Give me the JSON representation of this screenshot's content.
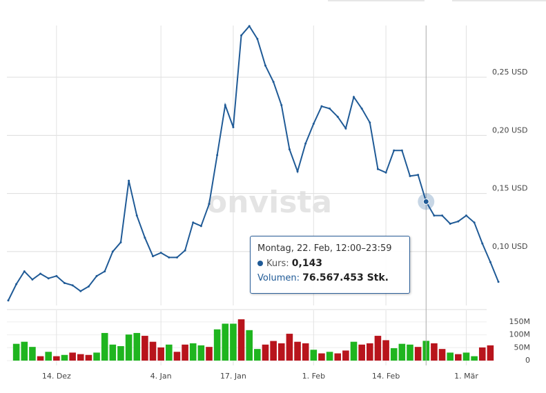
{
  "chart_data": {
    "type": "line",
    "watermark": "onvista",
    "x": [
      null,
      null,
      null,
      null,
      null,
      null,
      "14. Dez",
      null,
      null,
      null,
      null,
      null,
      null,
      null,
      null,
      null,
      null,
      null,
      null,
      "4. Jan",
      null,
      null,
      null,
      null,
      null,
      null,
      null,
      null,
      "17. Jan",
      null,
      null,
      null,
      null,
      null,
      null,
      null,
      null,
      null,
      "1. Feb",
      null,
      null,
      null,
      null,
      null,
      null,
      null,
      null,
      "14. Feb",
      null,
      null,
      null,
      null,
      null,
      null,
      null,
      null,
      null,
      "1. Mär",
      null,
      null,
      null,
      null
    ],
    "series": [
      {
        "color": "#1f5a96",
        "values": [
          0.058,
          0.072,
          0.083,
          0.076,
          0.081,
          0.077,
          0.079,
          0.073,
          0.071,
          0.066,
          0.07,
          0.079,
          0.083,
          0.1,
          0.108,
          0.161,
          0.131,
          0.112,
          0.096,
          0.099,
          0.095,
          0.095,
          0.101,
          0.125,
          0.122,
          0.141,
          0.183,
          0.226,
          0.207,
          0.286,
          0.294,
          0.283,
          0.26,
          0.246,
          0.226,
          0.188,
          0.169,
          0.193,
          0.21,
          0.225,
          0.223,
          0.216,
          0.206,
          0.233,
          0.223,
          0.211,
          0.171,
          0.168,
          0.187,
          0.187,
          0.165,
          0.166,
          0.143,
          0.131,
          0.131,
          0.124,
          0.126,
          0.131,
          0.125,
          0.107,
          0.091,
          0.074
        ]
      }
    ],
    "ylim": [
      0.0537,
      0.2945
    ],
    "yticks": [
      {
        "value": 0.1,
        "label": "0,10 USD"
      },
      {
        "value": 0.15,
        "label": "0,15 USD"
      },
      {
        "value": 0.2,
        "label": "0,20 USD"
      },
      {
        "value": 0.25,
        "label": "0,25 USD"
      }
    ],
    "grid": true,
    "volume": {
      "values": [
        null,
        65000000,
        73000000,
        53000000,
        17000000,
        34000000,
        17000000,
        22000000,
        31000000,
        25000000,
        22000000,
        31000000,
        107000000,
        62000000,
        56000000,
        101000000,
        107000000,
        96000000,
        73000000,
        51000000,
        62000000,
        34000000,
        62000000,
        67000000,
        59000000,
        53000000,
        121000000,
        143000000,
        143000000,
        160000000,
        118000000,
        45000000,
        62000000,
        76000000,
        67000000,
        104000000,
        73000000,
        67000000,
        42000000,
        28000000,
        34000000,
        28000000,
        39000000,
        73000000,
        62000000,
        67000000,
        96000000,
        79000000,
        48000000,
        65000000,
        62000000,
        53000000,
        76567453,
        67000000,
        45000000,
        31000000,
        25000000,
        31000000,
        17000000,
        51000000,
        59000000,
        null
      ],
      "colors": [
        null,
        "#1fb51f",
        "#1fb51f",
        "#1fb51f",
        "#b8141c",
        "#1fb51f",
        "#b8141c",
        "#1fb51f",
        "#b8141c",
        "#b8141c",
        "#b8141c",
        "#1fb51f",
        "#1fb51f",
        "#1fb51f",
        "#1fb51f",
        "#1fb51f",
        "#1fb51f",
        "#b8141c",
        "#b8141c",
        "#b8141c",
        "#1fb51f",
        "#b8141c",
        "#b8141c",
        "#1fb51f",
        "#1fb51f",
        "#b8141c",
        "#1fb51f",
        "#1fb51f",
        "#1fb51f",
        "#b8141c",
        "#1fb51f",
        "#1fb51f",
        "#b8141c",
        "#b8141c",
        "#b8141c",
        "#b8141c",
        "#b8141c",
        "#b8141c",
        "#1fb51f",
        "#b8141c",
        "#1fb51f",
        "#b8141c",
        "#b8141c",
        "#1fb51f",
        "#b8141c",
        "#b8141c",
        "#b8141c",
        "#b8141c",
        "#1fb51f",
        "#1fb51f",
        "#1fb51f",
        "#b8141c",
        "#1fb51f",
        "#b8141c",
        "#b8141c",
        "#1fb51f",
        "#b8141c",
        "#1fb51f",
        "#1fb51f",
        "#b8141c",
        "#b8141c",
        null
      ],
      "ylim": [
        0,
        195000000
      ],
      "yticks": [
        0,
        {
          "value": 50000000,
          "label": "50M"
        },
        {
          "value": 100000000,
          "label": "100M"
        },
        {
          "value": 150000000,
          "label": "150M"
        }
      ]
    },
    "tooltip": {
      "date": "Montag, 22. Feb, 12:00–23:59",
      "price_label": "Kurs:",
      "price": "0,143",
      "volume_label": "Volumen:",
      "volume": "76.567.453 Stk."
    }
  }
}
